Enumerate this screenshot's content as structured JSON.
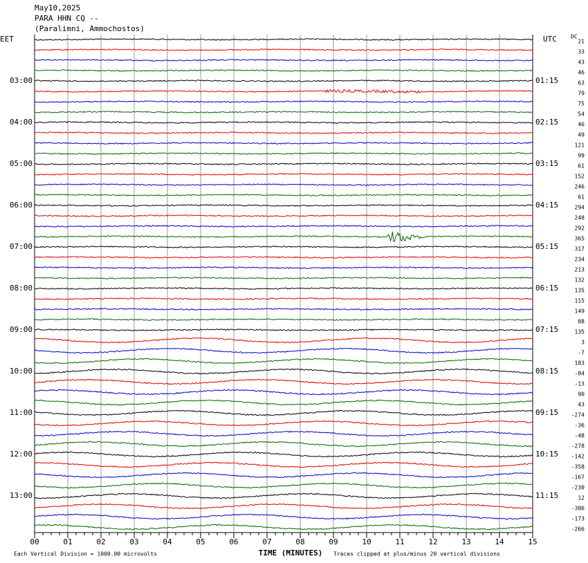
{
  "header": {
    "date": "May10,2025",
    "station": "PARA HHN CQ --",
    "location": "(Paralimni, Ammochostos)"
  },
  "left_axis": {
    "title": "EET",
    "labels": [
      "03:00",
      "04:00",
      "05:00",
      "06:00",
      "07:00",
      "08:00",
      "09:00",
      "10:00",
      "11:00",
      "12:00",
      "13:00"
    ]
  },
  "right_axis": {
    "title": "UTC",
    "labels": [
      "01:15",
      "02:15",
      "03:15",
      "04:15",
      "05:15",
      "06:15",
      "07:15",
      "08:15",
      "09:15",
      "10:15",
      "11:15"
    ]
  },
  "dc": {
    "title": "DC",
    "values": [
      "21",
      "33",
      "43",
      "46",
      "63",
      "79",
      "75",
      "54",
      "46",
      "49",
      "121",
      "99",
      "61",
      "152",
      "246",
      "61",
      "294",
      "248",
      "292",
      "365",
      "317",
      "234",
      "213",
      "132",
      "135",
      "115",
      "149",
      "88",
      "135",
      "3",
      "-7",
      "183",
      "-84",
      "-13",
      "90",
      "43",
      "-274",
      "-36",
      "-48",
      "-278",
      "-142",
      "-358",
      "-167",
      "-230",
      "12",
      "-386",
      "-173",
      "-266"
    ]
  },
  "x_axis": {
    "title": "TIME (MINUTES)",
    "ticks": [
      "00",
      "01",
      "02",
      "03",
      "04",
      "05",
      "06",
      "07",
      "08",
      "09",
      "10",
      "11",
      "12",
      "13",
      "14",
      "15"
    ]
  },
  "footer": {
    "scale": "Each Vertical Division = 1000.00 microvolts",
    "clip": "Traces clipped at plus/minus 20 vertical divisions"
  }
}
